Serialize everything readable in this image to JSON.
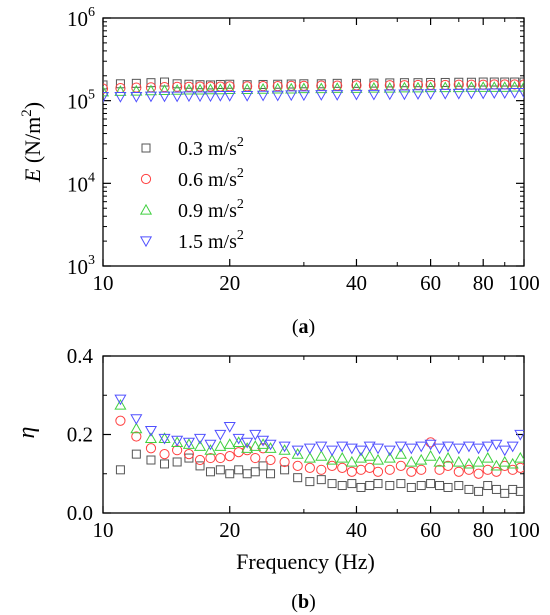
{
  "chart_data": [
    {
      "type": "scatter",
      "panel_label": "(a)",
      "ylabel": "E (N/m²)",
      "xlabel": "",
      "xscale": "log",
      "yscale": "log",
      "xlim": [
        10,
        100
      ],
      "ylim": [
        1000,
        1000000
      ],
      "xticks": [
        10,
        20,
        40,
        60,
        80,
        100
      ],
      "xtick_labels": [
        "10",
        "20",
        "40",
        "60",
        "80",
        "100"
      ],
      "yticks": [
        1000,
        10000,
        100000,
        1000000
      ],
      "ytick_labels": [
        {
          "base": "10",
          "exp": "3"
        },
        {
          "base": "10",
          "exp": "4"
        },
        {
          "base": "10",
          "exp": "5"
        },
        {
          "base": "10",
          "exp": "6"
        }
      ],
      "legend_position": "lower-left",
      "series": [
        {
          "name": "0.3 m/s²",
          "marker": "square",
          "color": "#555555",
          "x": [
            10,
            11,
            12,
            13,
            14,
            15,
            16,
            17,
            18,
            19,
            20,
            22,
            24,
            26,
            28,
            30,
            33,
            36,
            40,
            44,
            48,
            52,
            56,
            60,
            65,
            70,
            75,
            80,
            85,
            90,
            95,
            100
          ],
          "y": [
            155000,
            160000,
            162000,
            165000,
            168000,
            160000,
            158000,
            156000,
            155000,
            157000,
            158000,
            156000,
            157000,
            158000,
            159000,
            160000,
            160000,
            162000,
            162000,
            163000,
            164000,
            165000,
            165000,
            166000,
            166000,
            167000,
            167000,
            168000,
            168000,
            168000,
            168000,
            168000
          ]
        },
        {
          "name": "0.6 m/s²",
          "marker": "circle",
          "color": "#ff4040",
          "x": [
            10,
            11,
            12,
            13,
            14,
            15,
            16,
            17,
            18,
            19,
            20,
            22,
            24,
            26,
            28,
            30,
            33,
            36,
            40,
            44,
            48,
            52,
            56,
            60,
            65,
            70,
            75,
            80,
            85,
            90,
            95,
            100
          ],
          "y": [
            140000,
            142000,
            144000,
            145000,
            146000,
            147000,
            147000,
            148000,
            148000,
            148000,
            149000,
            149000,
            150000,
            150000,
            151000,
            151000,
            152000,
            152000,
            153000,
            153000,
            154000,
            154000,
            155000,
            155000,
            155000,
            156000,
            156000,
            156000,
            157000,
            157000,
            157000,
            157000
          ]
        },
        {
          "name": "0.9 m/s²",
          "marker": "triangle-up",
          "color": "#40d040",
          "x": [
            10,
            11,
            12,
            13,
            14,
            15,
            16,
            17,
            18,
            19,
            20,
            22,
            24,
            26,
            28,
            30,
            33,
            36,
            40,
            44,
            48,
            52,
            56,
            60,
            65,
            70,
            75,
            80,
            85,
            90,
            95,
            100
          ],
          "y": [
            128000,
            130000,
            131000,
            132000,
            133000,
            134000,
            135000,
            135000,
            136000,
            136000,
            137000,
            137000,
            138000,
            139000,
            139000,
            140000,
            140000,
            141000,
            141000,
            142000,
            142000,
            143000,
            143000,
            144000,
            144000,
            144000,
            145000,
            145000,
            145000,
            145000,
            146000,
            146000
          ]
        },
        {
          "name": "1.5 m/s²",
          "marker": "triangle-down",
          "color": "#5050ff",
          "x": [
            10,
            11,
            12,
            13,
            14,
            15,
            16,
            17,
            18,
            19,
            20,
            22,
            24,
            26,
            28,
            30,
            33,
            36,
            40,
            44,
            48,
            52,
            56,
            60,
            65,
            70,
            75,
            80,
            85,
            90,
            95,
            100
          ],
          "y": [
            112000,
            112000,
            112000,
            113000,
            113000,
            113000,
            114000,
            114000,
            114000,
            115000,
            115000,
            115000,
            116000,
            116000,
            117000,
            117000,
            118000,
            118000,
            119000,
            119000,
            120000,
            120000,
            121000,
            121000,
            122000,
            122000,
            123000,
            123000,
            124000,
            124000,
            125000,
            125000
          ]
        }
      ]
    },
    {
      "type": "scatter",
      "panel_label": "(b)",
      "ylabel": "η",
      "xlabel": "Frequency (Hz)",
      "xscale": "log",
      "yscale": "linear",
      "xlim": [
        10,
        100
      ],
      "ylim": [
        0,
        0.4
      ],
      "xticks": [
        10,
        20,
        40,
        60,
        80,
        100
      ],
      "xtick_labels": [
        "10",
        "20",
        "40",
        "60",
        "80",
        "100"
      ],
      "yticks": [
        0,
        0.2,
        0.4
      ],
      "ytick_labels": [
        "0.0",
        "0.2",
        "0.4"
      ],
      "series": [
        {
          "name": "0.3 m/s²",
          "marker": "square",
          "color": "#555555",
          "x": [
            11,
            12,
            13,
            14,
            15,
            16,
            17,
            18,
            19,
            20,
            21,
            22,
            23,
            24,
            25,
            27,
            29,
            31,
            33,
            35,
            37,
            39,
            41,
            43,
            45,
            48,
            51,
            54,
            57,
            60,
            63,
            66,
            70,
            74,
            78,
            82,
            86,
            90,
            94,
            98
          ],
          "y": [
            0.11,
            0.15,
            0.135,
            0.125,
            0.13,
            0.14,
            0.12,
            0.105,
            0.11,
            0.1,
            0.11,
            0.1,
            0.105,
            0.12,
            0.1,
            0.11,
            0.09,
            0.08,
            0.085,
            0.075,
            0.07,
            0.075,
            0.065,
            0.07,
            0.075,
            0.07,
            0.075,
            0.065,
            0.07,
            0.075,
            0.07,
            0.065,
            0.07,
            0.06,
            0.055,
            0.07,
            0.06,
            0.05,
            0.06,
            0.055
          ]
        },
        {
          "name": "0.6 m/s²",
          "marker": "circle",
          "color": "#ff4040",
          "x": [
            11,
            12,
            13,
            14,
            15,
            16,
            17,
            18,
            19,
            20,
            21,
            22,
            23,
            24,
            25,
            27,
            29,
            31,
            33,
            35,
            37,
            39,
            41,
            43,
            45,
            48,
            51,
            54,
            57,
            60,
            63,
            66,
            70,
            74,
            78,
            82,
            86,
            90,
            94,
            98
          ],
          "y": [
            0.235,
            0.195,
            0.165,
            0.15,
            0.16,
            0.15,
            0.135,
            0.14,
            0.14,
            0.145,
            0.155,
            0.16,
            0.14,
            0.165,
            0.135,
            0.13,
            0.12,
            0.115,
            0.11,
            0.12,
            0.115,
            0.105,
            0.11,
            0.115,
            0.105,
            0.11,
            0.12,
            0.105,
            0.11,
            0.18,
            0.11,
            0.12,
            0.105,
            0.11,
            0.1,
            0.11,
            0.105,
            0.12,
            0.11,
            0.115
          ]
        },
        {
          "name": "0.9 m/s²",
          "marker": "triangle-up",
          "color": "#40d040",
          "x": [
            11,
            12,
            13,
            14,
            15,
            16,
            17,
            18,
            19,
            20,
            21,
            22,
            23,
            24,
            25,
            27,
            29,
            31,
            33,
            35,
            37,
            39,
            41,
            43,
            45,
            48,
            51,
            54,
            57,
            60,
            63,
            66,
            70,
            74,
            78,
            82,
            86,
            90,
            94,
            98
          ],
          "y": [
            0.275,
            0.215,
            0.19,
            0.19,
            0.18,
            0.175,
            0.17,
            0.16,
            0.17,
            0.175,
            0.18,
            0.165,
            0.17,
            0.175,
            0.165,
            0.16,
            0.15,
            0.14,
            0.145,
            0.135,
            0.14,
            0.13,
            0.14,
            0.145,
            0.135,
            0.14,
            0.15,
            0.13,
            0.135,
            0.145,
            0.13,
            0.14,
            0.13,
            0.125,
            0.13,
            0.14,
            0.12,
            0.13,
            0.125,
            0.14
          ]
        },
        {
          "name": "1.5 m/s²",
          "marker": "triangle-down",
          "color": "#5050ff",
          "x": [
            11,
            12,
            13,
            14,
            15,
            16,
            17,
            18,
            19,
            20,
            21,
            22,
            23,
            24,
            25,
            27,
            29,
            31,
            33,
            35,
            37,
            39,
            41,
            43,
            45,
            48,
            51,
            54,
            57,
            60,
            63,
            66,
            70,
            74,
            78,
            82,
            86,
            90,
            94,
            98
          ],
          "y": [
            0.29,
            0.24,
            0.21,
            0.19,
            0.185,
            0.18,
            0.19,
            0.175,
            0.2,
            0.22,
            0.19,
            0.18,
            0.2,
            0.185,
            0.175,
            0.17,
            0.16,
            0.165,
            0.17,
            0.16,
            0.17,
            0.165,
            0.16,
            0.17,
            0.165,
            0.16,
            0.17,
            0.165,
            0.17,
            0.175,
            0.165,
            0.17,
            0.165,
            0.17,
            0.165,
            0.17,
            0.175,
            0.16,
            0.17,
            0.2
          ]
        }
      ]
    }
  ]
}
